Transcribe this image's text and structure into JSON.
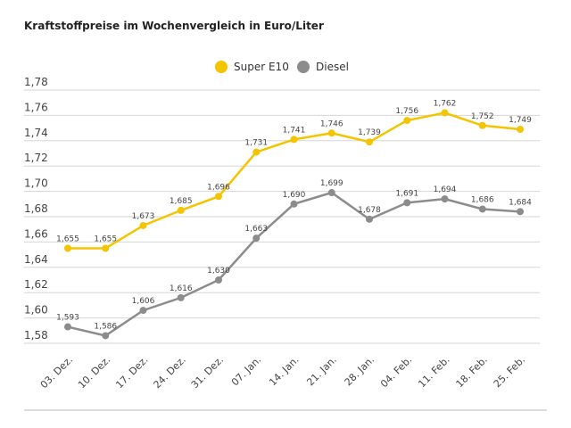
{
  "title": "Kraftstoffpreise im Wochenvergleich in Euro/Liter",
  "chart_data": {
    "type": "line",
    "title": "Kraftstoffpreise im Wochenvergleich in Euro/Liter",
    "categories": [
      "03. Dez.",
      "10. Dez.",
      "17. Dez.",
      "24. Dez.",
      "31. Dez.",
      "07. Jan.",
      "14. Jan.",
      "21. Jan.",
      "28. Jan.",
      "04. Feb.",
      "11. Feb.",
      "18. Feb.",
      "25. Feb."
    ],
    "series": [
      {
        "name": "Super E10",
        "color": "#f5c400",
        "values": [
          1.655,
          1.655,
          1.673,
          1.685,
          1.696,
          1.731,
          1.741,
          1.746,
          1.739,
          1.756,
          1.762,
          1.752,
          1.749
        ],
        "labels": [
          "1,655",
          "1,655",
          "1,673",
          "1,685",
          "1,696",
          "1,731",
          "1,741",
          "1,746",
          "1,739",
          "1,756",
          "1,762",
          "1,752",
          "1,749"
        ]
      },
      {
        "name": "Diesel",
        "color": "#8c8c8c",
        "values": [
          1.593,
          1.586,
          1.606,
          1.616,
          1.63,
          1.663,
          1.69,
          1.699,
          1.678,
          1.691,
          1.694,
          1.686,
          1.684
        ],
        "labels": [
          "1,593",
          "1,586",
          "1,606",
          "1,616",
          "1,630",
          "1,663",
          "1,690",
          "1,699",
          "1,678",
          "1,691",
          "1,694",
          "1,686",
          "1,684"
        ]
      }
    ],
    "yticks": [
      1.58,
      1.6,
      1.62,
      1.64,
      1.66,
      1.68,
      1.7,
      1.72,
      1.74,
      1.76,
      1.78
    ],
    "ytick_labels": [
      "1,58",
      "1,60",
      "1,62",
      "1,64",
      "1,66",
      "1,68",
      "1,70",
      "1,72",
      "1,74",
      "1,76",
      "1,78"
    ],
    "ylim": [
      1.58,
      1.78
    ],
    "xlabel": "",
    "ylabel": "",
    "grid": true,
    "legend": "top-center"
  }
}
